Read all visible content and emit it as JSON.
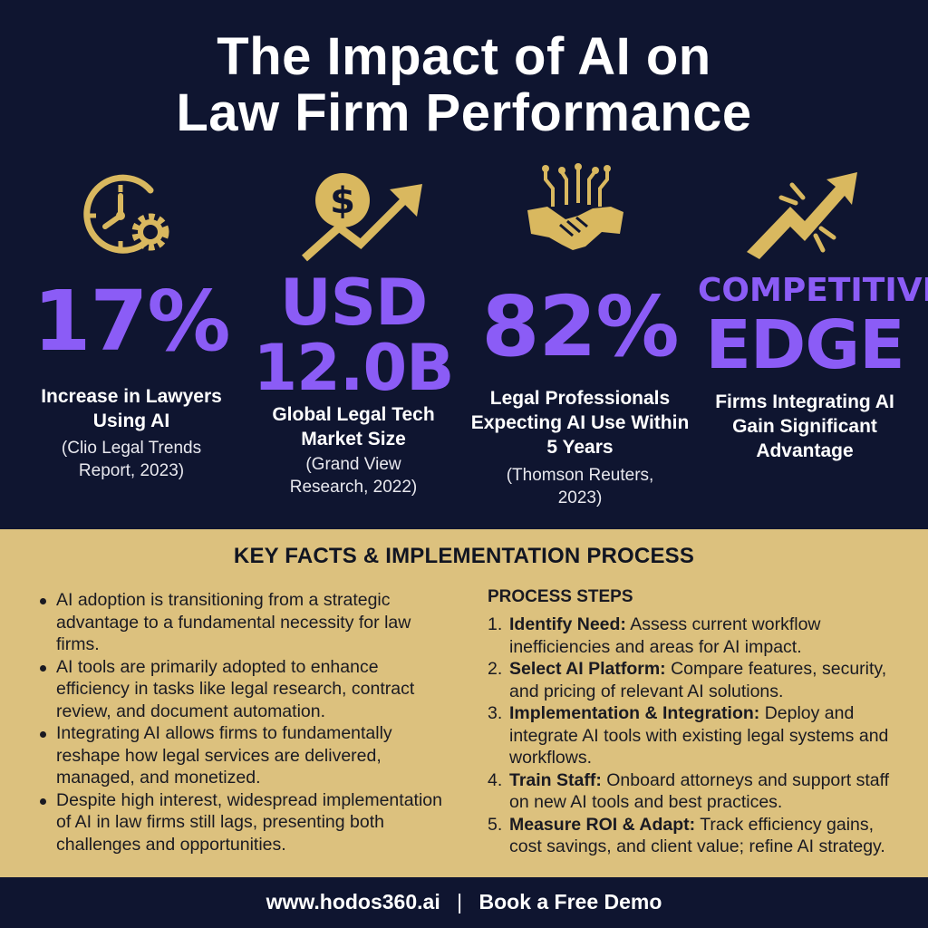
{
  "title": {
    "line1": "The Impact of AI on",
    "line2": "Law Firm Performance"
  },
  "colors": {
    "background": "#0f1530",
    "accent_purple": "#8b5cf6",
    "accent_gold": "#d9b85f",
    "band": "#dcc17e"
  },
  "stats": [
    {
      "icon": "clock-gear-icon",
      "value_lines": [
        "17%"
      ],
      "label": "Increase in Lawyers Using AI",
      "source": "(Clio Legal Trends Report, 2023)"
    },
    {
      "icon": "dollar-growth-icon",
      "value_lines": [
        "USD",
        "12.0B"
      ],
      "label": "Global Legal Tech Market Size",
      "source": "(Grand View Research, 2022)"
    },
    {
      "icon": "handshake-circuit-icon",
      "value_lines": [
        "82%"
      ],
      "label": "Legal Professionals Expecting AI Use Within 5 Years",
      "source": "(Thomson Reuters, 2023)"
    },
    {
      "icon": "trend-arrow-icon",
      "value_lines": [
        "COMPETITIVE",
        "EDGE"
      ],
      "label": "Firms Integrating AI Gain Significant Advantage",
      "source": ""
    }
  ],
  "key_facts": {
    "heading": "KEY FACTS & IMPLEMENTATION PROCESS",
    "bullets": [
      "AI adoption is transitioning from a strategic advantage to a fundamental necessity for law firms.",
      "AI tools are primarily adopted to enhance efficiency in tasks like legal research, contract review, and document automation.",
      "Integrating AI allows firms to fundamentally reshape how legal services are delivered, managed, and monetized.",
      "Despite high interest, widespread implementation of AI in law firms still lags, presenting both challenges and opportunities."
    ]
  },
  "process": {
    "heading": "PROCESS STEPS",
    "steps": [
      {
        "num": "1.",
        "title": "Identify Need:",
        "text": "Assess current workflow inefficiencies and areas for AI impact."
      },
      {
        "num": "2.",
        "title": "Select AI Platform:",
        "text": "Compare features, security, and pricing of relevant AI solutions."
      },
      {
        "num": "3.",
        "title": "Implementation & Integration:",
        "text": "Deploy and integrate AI tools with existing legal systems and workflows."
      },
      {
        "num": "4.",
        "title": "Train Staff:",
        "text": "Onboard attorneys and support staff on new AI tools and best practices."
      },
      {
        "num": "5.",
        "title": "Measure ROI & Adapt:",
        "text": "Track efficiency gains, cost savings, and client value; refine AI strategy."
      }
    ]
  },
  "footer": {
    "website": "www.hodos360.ai",
    "separator": "|",
    "cta": "Book a Free Demo"
  }
}
